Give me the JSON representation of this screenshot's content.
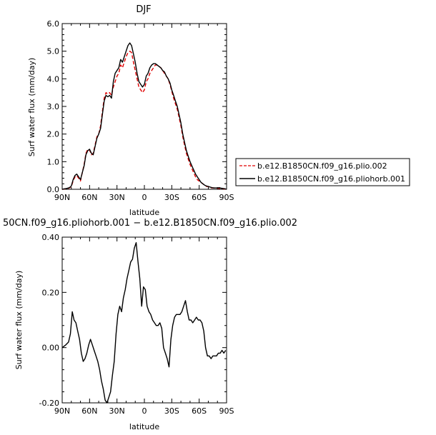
{
  "chart_data": [
    {
      "type": "line",
      "title": "DJF",
      "xlabel": "latitude",
      "ylabel": "Surf water flux (mm/day)",
      "xlim": [
        90,
        -90
      ],
      "ylim": [
        0,
        6
      ],
      "xticks": [
        90,
        60,
        30,
        0,
        -30,
        -60,
        -90
      ],
      "xtick_labels": [
        "90N",
        "60N",
        "30N",
        "0",
        "30S",
        "60S",
        "90S"
      ],
      "yticks": [
        0,
        1,
        2,
        3,
        4,
        5,
        6
      ],
      "ytick_labels": [
        "0.0",
        "1.0",
        "2.0",
        "3.0",
        "4.0",
        "5.0",
        "6.0"
      ],
      "legend_position": "right",
      "series": [
        {
          "name": "b.e12.B1850CN.f09_g16.plio.002",
          "color": "#e00000",
          "dash": "dashed",
          "x": [
            90,
            85,
            82,
            80,
            78,
            76,
            74,
            72,
            70,
            68,
            66,
            64,
            62,
            60,
            58,
            56,
            54,
            52,
            50,
            48,
            46,
            44,
            42,
            40,
            38,
            36,
            34,
            32,
            30,
            28,
            26,
            24,
            22,
            20,
            18,
            16,
            14,
            12,
            10,
            8,
            6,
            4,
            2,
            0,
            -2,
            -4,
            -6,
            -8,
            -10,
            -12,
            -14,
            -16,
            -18,
            -20,
            -22,
            -24,
            -26,
            -28,
            -30,
            -32,
            -34,
            -36,
            -38,
            -40,
            -42,
            -44,
            -46,
            -48,
            -50,
            -52,
            -54,
            -56,
            -58,
            -60,
            -62,
            -64,
            -66,
            -68,
            -70,
            -72,
            -74,
            -76,
            -78,
            -80,
            -82,
            -84,
            -86,
            -88,
            -90
          ],
          "values": [
            0.0,
            0.02,
            0.05,
            0.1,
            0.3,
            0.45,
            0.5,
            0.4,
            0.3,
            0.6,
            0.9,
            1.3,
            1.45,
            1.42,
            1.25,
            1.3,
            1.6,
            1.9,
            2.0,
            2.3,
            2.8,
            3.3,
            3.5,
            3.45,
            3.5,
            3.4,
            3.7,
            3.9,
            4.1,
            4.2,
            4.5,
            4.4,
            4.6,
            4.8,
            4.95,
            5.0,
            4.95,
            4.6,
            4.3,
            4.0,
            3.7,
            3.6,
            3.5,
            3.6,
            3.9,
            4.0,
            4.2,
            4.3,
            4.4,
            4.5,
            4.5,
            4.45,
            4.4,
            4.3,
            4.2,
            4.1,
            4.0,
            3.8,
            3.55,
            3.3,
            3.1,
            2.9,
            2.6,
            2.3,
            1.9,
            1.6,
            1.3,
            1.1,
            0.9,
            0.75,
            0.6,
            0.45,
            0.35,
            0.3,
            0.25,
            0.2,
            0.15,
            0.1,
            0.1,
            0.05,
            0.05,
            0.05,
            0.05,
            0.04,
            0.03,
            0.03,
            0.02,
            0.01,
            0.0
          ]
        },
        {
          "name": "b.e12.B1850CN.f09_g16.pliohorb.001",
          "color": "#000000",
          "dash": "solid",
          "x": [
            90,
            85,
            82,
            80,
            78,
            76,
            74,
            72,
            70,
            68,
            66,
            64,
            62,
            60,
            58,
            56,
            54,
            52,
            50,
            48,
            46,
            44,
            42,
            40,
            38,
            36,
            34,
            32,
            30,
            28,
            26,
            24,
            22,
            20,
            18,
            16,
            14,
            12,
            10,
            8,
            6,
            4,
            2,
            0,
            -2,
            -4,
            -6,
            -8,
            -10,
            -12,
            -14,
            -16,
            -18,
            -20,
            -22,
            -24,
            -26,
            -28,
            -30,
            -32,
            -34,
            -36,
            -38,
            -40,
            -42,
            -44,
            -46,
            -48,
            -50,
            -52,
            -54,
            -56,
            -58,
            -60,
            -62,
            -64,
            -66,
            -68,
            -70,
            -72,
            -74,
            -76,
            -78,
            -80,
            -82,
            -84,
            -86,
            -88,
            -90
          ],
          "values": [
            0.0,
            0.03,
            0.06,
            0.12,
            0.35,
            0.5,
            0.55,
            0.45,
            0.35,
            0.6,
            0.85,
            1.25,
            1.4,
            1.45,
            1.3,
            1.25,
            1.55,
            1.85,
            2.0,
            2.2,
            2.7,
            3.2,
            3.4,
            3.35,
            3.4,
            3.3,
            3.9,
            4.2,
            4.3,
            4.4,
            4.7,
            4.6,
            4.8,
            5.0,
            5.2,
            5.3,
            5.2,
            4.9,
            4.6,
            4.2,
            3.9,
            3.8,
            3.7,
            3.8,
            4.1,
            4.2,
            4.4,
            4.5,
            4.55,
            4.55,
            4.5,
            4.45,
            4.4,
            4.3,
            4.25,
            4.1,
            4.0,
            3.85,
            3.6,
            3.4,
            3.2,
            3.0,
            2.7,
            2.4,
            2.0,
            1.7,
            1.4,
            1.2,
            1.0,
            0.85,
            0.7,
            0.55,
            0.45,
            0.35,
            0.25,
            0.2,
            0.15,
            0.12,
            0.1,
            0.08,
            0.06,
            0.05,
            0.05,
            0.05,
            0.06,
            0.04,
            0.03,
            0.02,
            0.0
          ]
        }
      ]
    },
    {
      "type": "line",
      "title": "50CN.f09_g16.pliohorb.001 − b.e12.B1850CN.f09_g16.plio.002",
      "xlabel": "latitude",
      "ylabel": "Surf water flux (mm/day)",
      "xlim": [
        90,
        -90
      ],
      "ylim": [
        -0.2,
        0.4
      ],
      "xticks": [
        90,
        60,
        30,
        0,
        -30,
        -60,
        -90
      ],
      "xtick_labels": [
        "90N",
        "60N",
        "30N",
        "0",
        "30S",
        "60S",
        "90S"
      ],
      "yticks": [
        -0.2,
        0.0,
        0.2,
        0.4
      ],
      "ytick_labels": [
        "-0.20",
        "0.00",
        "0.20",
        "0.40"
      ],
      "series": [
        {
          "color": "#000000",
          "dash": "solid",
          "x": [
            90,
            86,
            83,
            81,
            79,
            77,
            75,
            73,
            71,
            69,
            67,
            65,
            63,
            61,
            59,
            57,
            55,
            53,
            51,
            49,
            47,
            45,
            43,
            41,
            39,
            37,
            35,
            33,
            31,
            29,
            27,
            25,
            23,
            21,
            19,
            17,
            15,
            13,
            11,
            9,
            7,
            5,
            3,
            1,
            -1,
            -3,
            -5,
            -7,
            -9,
            -11,
            -13,
            -15,
            -17,
            -19,
            -21,
            -23,
            -25,
            -27,
            -29,
            -31,
            -33,
            -35,
            -37,
            -39,
            -41,
            -43,
            -45,
            -47,
            -49,
            -51,
            -53,
            -55,
            -57,
            -59,
            -61,
            -63,
            -65,
            -67,
            -69,
            -71,
            -73,
            -75,
            -77,
            -79,
            -81,
            -83,
            -85,
            -87,
            -89
          ],
          "values": [
            0.0,
            0.01,
            0.02,
            0.05,
            0.13,
            0.1,
            0.09,
            0.06,
            0.03,
            -0.02,
            -0.05,
            -0.04,
            -0.02,
            0.01,
            0.03,
            0.01,
            -0.01,
            -0.03,
            -0.05,
            -0.08,
            -0.12,
            -0.15,
            -0.19,
            -0.2,
            -0.18,
            -0.16,
            -0.1,
            -0.05,
            0.05,
            0.12,
            0.15,
            0.13,
            0.18,
            0.21,
            0.25,
            0.28,
            0.31,
            0.32,
            0.36,
            0.38,
            0.31,
            0.25,
            0.15,
            0.22,
            0.21,
            0.15,
            0.13,
            0.12,
            0.1,
            0.09,
            0.08,
            0.08,
            0.09,
            0.07,
            0.0,
            -0.02,
            -0.04,
            -0.07,
            0.03,
            0.08,
            0.11,
            0.12,
            0.12,
            0.12,
            0.13,
            0.15,
            0.17,
            0.13,
            0.1,
            0.1,
            0.09,
            0.1,
            0.11,
            0.1,
            0.1,
            0.09,
            0.06,
            0.0,
            -0.03,
            -0.03,
            -0.04,
            -0.03,
            -0.03,
            -0.03,
            -0.02,
            -0.02,
            -0.01,
            -0.02,
            -0.01
          ]
        }
      ]
    }
  ]
}
